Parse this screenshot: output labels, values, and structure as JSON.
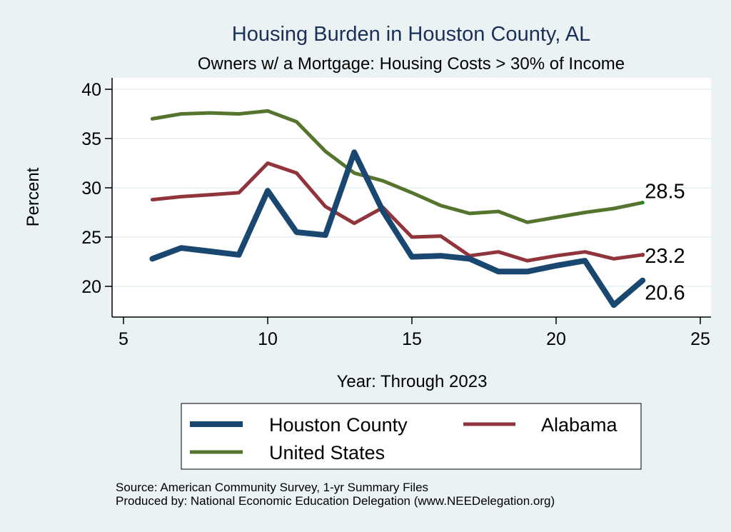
{
  "chart_data": {
    "type": "line",
    "title": "Housing Burden in Houston County, AL",
    "subtitle": "Owners w/ a Mortgage: Housing Costs > 30% of Income",
    "xlabel": "Year: Through 2023",
    "ylabel": "Percent",
    "xlim": [
      5,
      25
    ],
    "ylim": [
      17.5,
      41
    ],
    "xticks": [
      5,
      10,
      15,
      20,
      25
    ],
    "yticks": [
      20,
      25,
      30,
      35,
      40
    ],
    "grid": true,
    "x": [
      6,
      7,
      8,
      9,
      10,
      11,
      12,
      13,
      14,
      15,
      16,
      17,
      18,
      19,
      20,
      21,
      22,
      23
    ],
    "series": [
      {
        "name": "Houston County",
        "color": "#1a476f",
        "values": [
          22.8,
          23.9,
          23.55,
          23.2,
          29.7,
          25.5,
          25.2,
          33.6,
          27.6,
          23.0,
          23.1,
          22.8,
          21.5,
          21.5,
          22.1,
          22.6,
          18.1,
          20.6
        ],
        "end_label": "20.6"
      },
      {
        "name": "Alabama",
        "color": "#90353b",
        "values": [
          28.8,
          29.1,
          29.3,
          29.5,
          32.5,
          31.5,
          28.1,
          26.4,
          28.0,
          25.0,
          25.1,
          23.1,
          23.5,
          22.6,
          23.1,
          23.5,
          22.8,
          23.2
        ],
        "end_label": "23.2"
      },
      {
        "name": "United States",
        "color": "#55752f",
        "values": [
          37.0,
          37.5,
          37.6,
          37.5,
          37.8,
          36.7,
          33.7,
          31.5,
          30.7,
          29.5,
          28.2,
          27.4,
          27.6,
          26.5,
          27.0,
          27.5,
          27.9,
          28.5
        ],
        "end_label": "28.5"
      }
    ],
    "legend": {
      "placement": "bottom",
      "entries": [
        "Houston County",
        "Alabama",
        "United States"
      ]
    },
    "notes": [
      "Source: American Community Survey, 1-yr Summary Files",
      "Produced by: National Economic Education Delegation (www.NEEDelegation.org)"
    ]
  }
}
